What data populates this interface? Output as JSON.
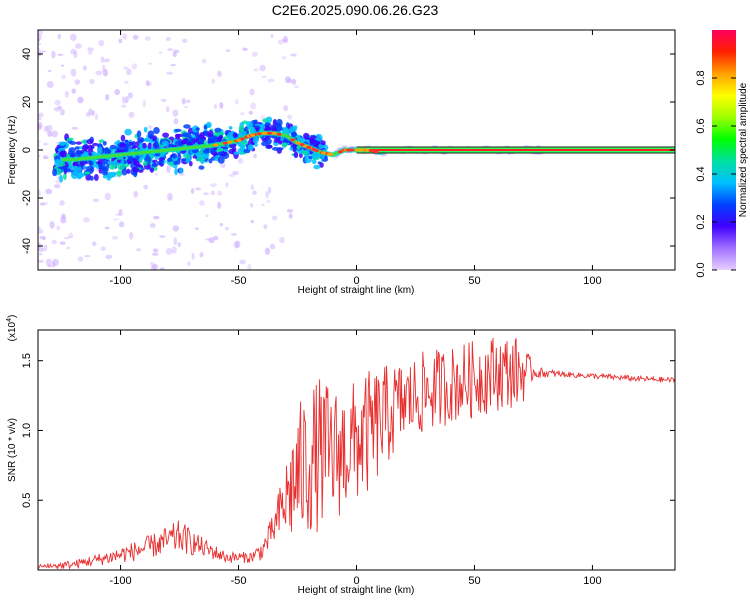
{
  "chart_title": "C2E6.2025.090.06.26.G23",
  "chart_data": [
    {
      "type": "heatmap",
      "title": "C2E6.2025.090.06.26.G23",
      "xlabel": "Height of straight line (km)",
      "ylabel": "Frequency (Hz)",
      "xlim": [
        -135,
        135
      ],
      "ylim": [
        -50,
        50
      ],
      "x_ticks": [
        -100,
        -50,
        0,
        50,
        100
      ],
      "y_ticks": [
        -40,
        -20,
        0,
        20,
        40
      ],
      "ridge": {
        "heights": [
          -135,
          -120,
          -110,
          -100,
          -90,
          -80,
          -70,
          -60,
          -50,
          -45,
          -40,
          -35,
          -30,
          -25,
          -20,
          -15,
          -10,
          -5,
          0,
          5,
          10,
          15,
          20,
          40,
          60,
          80,
          100,
          120,
          135
        ],
        "frequencies": [
          -4,
          -4,
          -3,
          -2,
          -1,
          0,
          1,
          2,
          4,
          6,
          7,
          7,
          6,
          3,
          1,
          -1,
          -2,
          0,
          0,
          0,
          -1,
          0,
          0,
          0,
          0,
          0,
          0,
          0,
          0
        ]
      },
      "colorbar": {
        "label": "Normalized spectral amplitude",
        "range": [
          0,
          1
        ],
        "ticks": [
          "0.0",
          "0.2",
          "0.4",
          "0.6",
          "0.8"
        ],
        "colors": [
          "#e6d0ff",
          "#a070ff",
          "#4000ff",
          "#0040ff",
          "#00c0ff",
          "#00e0a0",
          "#00ff00",
          "#a0ff00",
          "#ffff00",
          "#ffa000",
          "#ff2000",
          "#ff0060"
        ]
      }
    },
    {
      "type": "line",
      "xlabel": "Height of straight line (km)",
      "ylabel": "SNR (10 * v/v)",
      "scale_label": "(x10",
      "scale_exponent": "4",
      "xlim": [
        -135,
        135
      ],
      "ylim": [
        0.0,
        1.72
      ],
      "x_ticks": [
        -100,
        -50,
        0,
        50,
        100
      ],
      "y_ticks": [
        0.5,
        1.0,
        1.5
      ],
      "color": "#e83030",
      "envelope": {
        "heights": [
          -135,
          -120,
          -105,
          -95,
          -85,
          -75,
          -65,
          -55,
          -45,
          -40,
          -35,
          -30,
          -25,
          -20,
          -15,
          -10,
          -5,
          0,
          5,
          10,
          15,
          20,
          30,
          40,
          50,
          60,
          70,
          75,
          80,
          90,
          100,
          110,
          120,
          135
        ],
        "snr_mean": [
          0.02,
          0.04,
          0.09,
          0.13,
          0.18,
          0.24,
          0.16,
          0.09,
          0.09,
          0.14,
          0.3,
          0.5,
          0.68,
          0.78,
          0.84,
          0.82,
          0.86,
          0.92,
          0.98,
          1.06,
          1.14,
          1.2,
          1.28,
          1.33,
          1.37,
          1.42,
          1.42,
          1.42,
          1.41,
          1.4,
          1.39,
          1.38,
          1.37,
          1.36
        ],
        "snr_spread": [
          0.02,
          0.03,
          0.05,
          0.07,
          0.09,
          0.12,
          0.07,
          0.04,
          0.04,
          0.07,
          0.12,
          0.3,
          0.5,
          0.55,
          0.55,
          0.5,
          0.45,
          0.45,
          0.45,
          0.4,
          0.35,
          0.3,
          0.3,
          0.28,
          0.28,
          0.28,
          0.25,
          0.05,
          0.03,
          0.02,
          0.02,
          0.02,
          0.02,
          0.02
        ]
      }
    }
  ]
}
